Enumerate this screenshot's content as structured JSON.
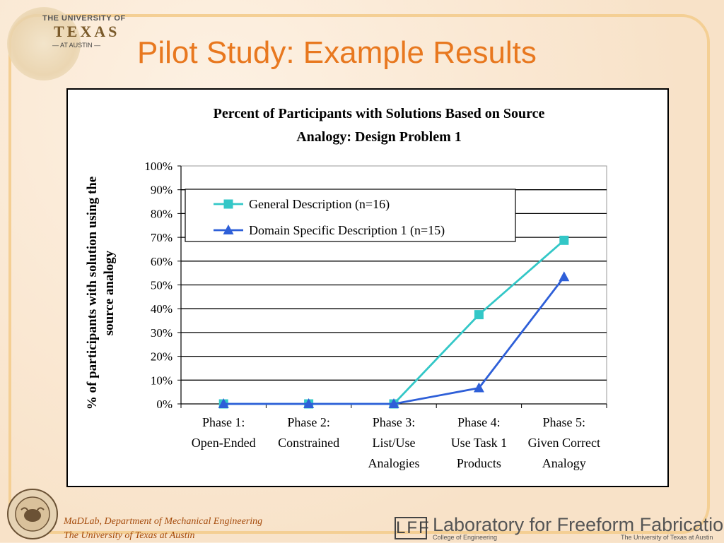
{
  "slide": {
    "title": "Pilot Study: Example Results"
  },
  "ut_logo": {
    "line1": "THE UNIVERSITY OF",
    "line2": "TEXAS",
    "line3": "— AT AUSTIN —"
  },
  "footer": {
    "line1": "MaDLab, Department of Mechanical Engineering",
    "line2": "The University of Texas at Austin"
  },
  "lff": {
    "mark": "LFF",
    "name": "Laboratory for Freeform Fabrication",
    "sub_left": "College of Engineering",
    "sub_right": "The University of Texas at Austin"
  },
  "colors": {
    "title": "#e8781f",
    "series_general": "#33c7c7",
    "series_domain": "#2e5fd8"
  },
  "chart_data": {
    "type": "line",
    "title_lines": [
      "Percent of Participants with Solutions Based on Source",
      "Analogy: Design Problem 1"
    ],
    "ylabel_lines": [
      "% of participants with solution using the",
      "source analogy"
    ],
    "xlabel": "",
    "categories": [
      [
        "Phase 1:",
        "Open-Ended"
      ],
      [
        "Phase 2:",
        "Constrained"
      ],
      [
        "Phase 3:",
        "List/Use",
        "Analogies"
      ],
      [
        "Phase 4:",
        "Use Task 1",
        "Products"
      ],
      [
        "Phase 5:",
        "Given Correct",
        "Analogy"
      ]
    ],
    "ylim": [
      0,
      100
    ],
    "yticks": [
      "0%",
      "10%",
      "20%",
      "30%",
      "40%",
      "50%",
      "60%",
      "70%",
      "80%",
      "90%",
      "100%"
    ],
    "grid": true,
    "legend_position": "top-left inside plot",
    "series": [
      {
        "name": "General Description (n=16)",
        "marker": "square",
        "color": "#33c7c7",
        "values": [
          0,
          0,
          0,
          37.5,
          68.75
        ]
      },
      {
        "name": "Domain Specific Description 1 (n=15)",
        "marker": "triangle",
        "color": "#2e5fd8",
        "values": [
          0,
          0,
          0,
          6.67,
          53.33
        ]
      }
    ]
  }
}
